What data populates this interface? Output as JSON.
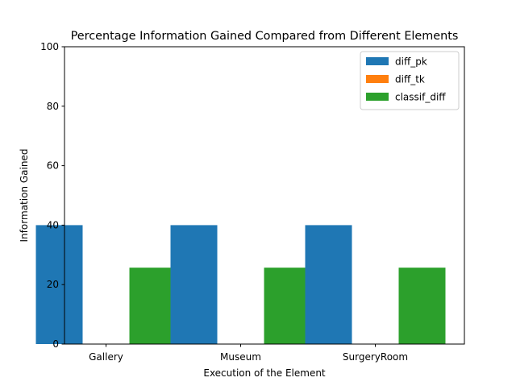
{
  "chart_data": {
    "type": "bar",
    "title": "Percentage Information Gained Compared from Different Elements",
    "xlabel": "Execution of the Element",
    "ylabel": "Information Gained",
    "categories": [
      "Gallery",
      "Museum",
      "SurgeryRoom"
    ],
    "series": [
      {
        "name": "diff_pk",
        "values": [
          40,
          40,
          40
        ],
        "color": "#1f77b4"
      },
      {
        "name": "diff_tk",
        "values": [
          0,
          0,
          0
        ],
        "color": "#ff7f0e"
      },
      {
        "name": "classif_diff",
        "values": [
          25.7,
          25.7,
          25.7
        ],
        "color": "#2ca02c"
      }
    ],
    "ylim": [
      0,
      100
    ],
    "yticks": [
      0,
      20,
      40,
      60,
      80,
      100
    ],
    "legend_position": "top-right",
    "grid": false
  }
}
